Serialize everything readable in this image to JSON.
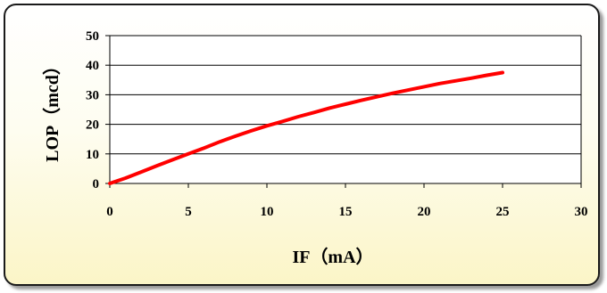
{
  "chart_data": {
    "type": "line",
    "xlabel": "IF（mA）",
    "ylabel": "LOP（mcd）",
    "xlim": [
      0,
      30
    ],
    "ylim": [
      0,
      50
    ],
    "x_ticks": [
      0,
      5,
      10,
      15,
      20,
      25,
      30
    ],
    "y_ticks": [
      0,
      10,
      20,
      30,
      40,
      50
    ],
    "grid": "horizontal",
    "series": [
      {
        "color": "#ff0000",
        "x": [
          0,
          1,
          2,
          3,
          4,
          5,
          6,
          7,
          8,
          9,
          10,
          11,
          12,
          13,
          14,
          15,
          16,
          17,
          18,
          19,
          20,
          21,
          22,
          23,
          24,
          25
        ],
        "y": [
          0,
          1.8,
          3.9,
          6.0,
          8.0,
          10.0,
          12.0,
          14.1,
          16.0,
          17.8,
          19.5,
          21.0,
          22.6,
          24.0,
          25.5,
          26.8,
          28.1,
          29.3,
          30.5,
          31.6,
          32.7,
          33.8,
          34.7,
          35.6,
          36.6,
          37.5
        ]
      }
    ]
  }
}
